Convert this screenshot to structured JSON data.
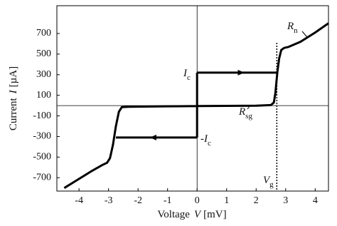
{
  "chart_data": {
    "type": "line",
    "x_label": {
      "text": "Voltage",
      "var": "V",
      "unit": "[mV]"
    },
    "y_label": {
      "text": "Current",
      "var": "I",
      "unit": "[µA]"
    },
    "xlim": [
      -4.75,
      4.45
    ],
    "ylim": [
      -830,
      970
    ],
    "xticks": [
      -4,
      -3,
      -2,
      -1,
      0,
      1,
      2,
      3,
      4
    ],
    "yticks": [
      -700,
      -500,
      -300,
      -100,
      100,
      300,
      500,
      700
    ],
    "grid": false,
    "series": [
      {
        "color": "#000000",
        "x": [
          -4.5,
          -3.6,
          -3.2,
          -3.05,
          -2.95,
          -2.85,
          -2.75,
          -2.65,
          -2.55,
          -2.3,
          -1,
          0,
          1,
          2,
          2.5,
          2.6,
          2.65,
          2.72,
          2.78,
          2.85,
          2.95,
          3.1,
          3.5,
          4,
          4.45,
          null,
          0,
          0,
          null,
          0,
          2.72,
          null,
          0,
          -2.75
        ],
        "values": [
          -800,
          -640,
          -575,
          -555,
          -510,
          -380,
          -200,
          -60,
          -15,
          -12,
          -7,
          -5,
          -3,
          -1,
          5,
          30,
          120,
          330,
          460,
          540,
          560,
          570,
          620,
          710,
          800,
          null,
          -310,
          320,
          null,
          320,
          320,
          null,
          -310,
          -310
        ]
      }
    ],
    "vlines": [
      {
        "x": 2.7,
        "style": "dotted"
      }
    ],
    "annotations": [
      {
        "text": "I",
        "sub": "c"
      },
      {
        "text": "-I",
        "sub": "c"
      },
      {
        "text": "R",
        "sub": "n"
      },
      {
        "text": "R",
        "sub": "sg"
      },
      {
        "text": "V",
        "sub": "g"
      }
    ]
  }
}
